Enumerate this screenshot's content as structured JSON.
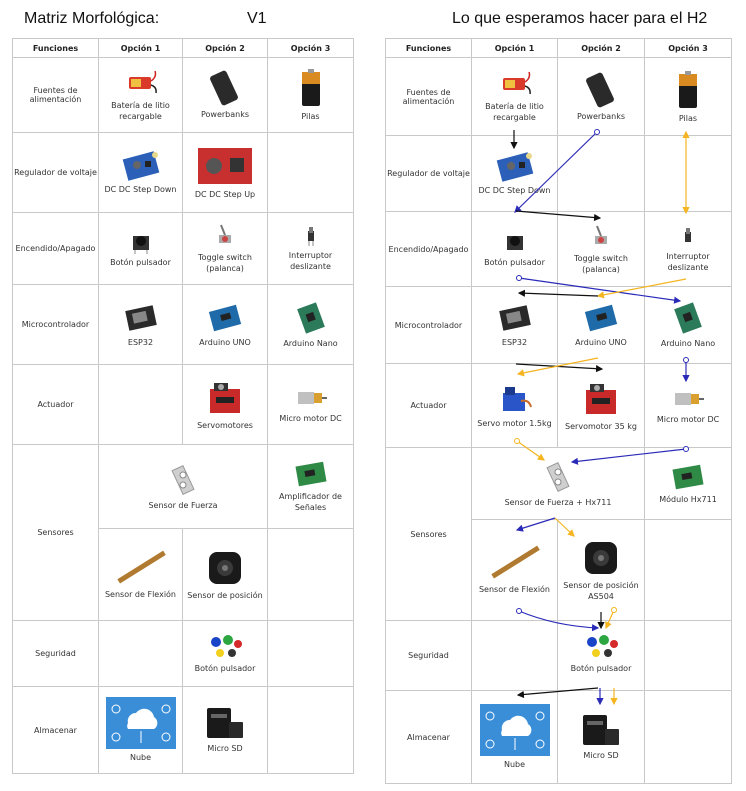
{
  "title_left": "Matriz Morfológica:",
  "version": "V1",
  "title_right": "Lo que esperamos hacer para el H2",
  "headers": [
    "Funciones",
    "Opción 1",
    "Opción 2",
    "Opción 3"
  ],
  "v1": {
    "rows": [
      {
        "fn": "Fuentes de alimentación",
        "o1": "Batería de litio recargable",
        "o2": "Powerbanks",
        "o3": "Pilas"
      },
      {
        "fn": "Regulador de voltaje",
        "o1": "DC DC Step Down",
        "o2": "DC DC Step Up",
        "o3": ""
      },
      {
        "fn": "Encendido/Apagado",
        "o1": "Botón pulsador",
        "o2": "Toggle switch (palanca)",
        "o3": "Interruptor deslizante"
      },
      {
        "fn": "Microcontrolador",
        "o1": "ESP32",
        "o2": "Arduino UNO",
        "o3": "Arduino Nano"
      },
      {
        "fn": "Actuador",
        "o1": "",
        "o2": "Servomotores",
        "o3": "Micro motor DC"
      },
      {
        "fn": "Sensores",
        "o12": "Sensor de Fuerza",
        "o3": "Amplificador de Señales",
        "o1b": "Sensor de Flexión",
        "o2b": "Sensor de posición"
      },
      {
        "fn": "Seguridad",
        "o1": "",
        "o2": "Botón pulsador",
        "o3": ""
      },
      {
        "fn": "Almacenar",
        "o1": "Nube",
        "o2": "Micro SD",
        "o3": ""
      }
    ]
  },
  "h2": {
    "rows": [
      {
        "fn": "Fuentes de alimentación",
        "o1": "Batería de litio recargable",
        "o2": "Powerbanks",
        "o3": "Pilas"
      },
      {
        "fn": "Regulador de voltaje",
        "o1": "DC DC Step Down",
        "o2": "",
        "o3": ""
      },
      {
        "fn": "Encendido/Apagado",
        "o1": "Botón pulsador",
        "o2": "Toggle switch (palanca)",
        "o3": "Interruptor deslizante"
      },
      {
        "fn": "Microcontrolador",
        "o1": "ESP32",
        "o2": "Arduino UNO",
        "o3": "Arduino Nano"
      },
      {
        "fn": "Actuador",
        "o1": "Servo motor 1.5kg",
        "o2": "Servomotor 35 kg",
        "o3": "Micro motor DC"
      },
      {
        "fn": "Sensores",
        "o12": "Sensor de Fuerza + Hx711",
        "o3": "Módulo Hx711",
        "o1b": "Sensor de Flexión",
        "o2b": "Sensor de posición AS504"
      },
      {
        "fn": "Seguridad",
        "o2": "Botón pulsador"
      },
      {
        "fn": "Almacenar",
        "o1": "Nube",
        "o2": "Micro SD"
      }
    ]
  },
  "colors": {
    "blue": "#2a2ab8",
    "amber": "#f5b520",
    "black": "#111111",
    "grid": "#c9c9c9"
  },
  "icons": [
    "battery-pack-icon",
    "powerbank-icon",
    "aa-battery-icon",
    "buck-converter-icon",
    "boost-converter-icon",
    "push-button-icon",
    "toggle-switch-icon",
    "slide-switch-icon",
    "esp32-icon",
    "arduino-uno-icon",
    "arduino-nano-icon",
    "servo-icon",
    "micro-motor-icon",
    "load-cell-icon",
    "amplifier-board-icon",
    "flex-sensor-icon",
    "encoder-icon",
    "colored-buttons-icon",
    "cloud-icon",
    "micro-sd-icon"
  ]
}
